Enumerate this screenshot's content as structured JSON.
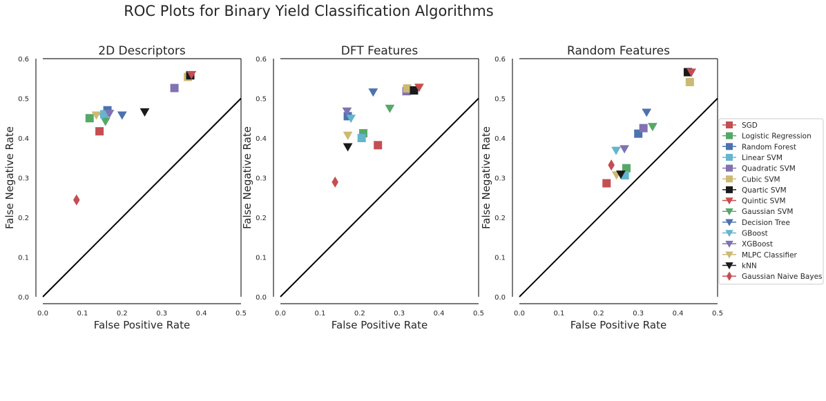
{
  "figure": {
    "title": "ROC Plots for Binary Yield Classification Algorithms"
  },
  "legend": {
    "placement": "right",
    "entries": [
      {
        "name": "SGD",
        "color": "#c44e52",
        "marker": "square"
      },
      {
        "name": "Logistic Regression",
        "color": "#55a868",
        "marker": "square"
      },
      {
        "name": "Random Forest",
        "color": "#4c72b0",
        "marker": "square"
      },
      {
        "name": "Linear SVM",
        "color": "#64b5cd",
        "marker": "square"
      },
      {
        "name": "Quadratic SVM",
        "color": "#8172b2",
        "marker": "square"
      },
      {
        "name": "Cubic SVM",
        "color": "#ccb974",
        "marker": "square"
      },
      {
        "name": "Quartic SVM",
        "color": "#1a1a1a",
        "marker": "square"
      },
      {
        "name": "Quintic SVM",
        "color": "#c44e52",
        "marker": "triangle-down"
      },
      {
        "name": "Gaussian SVM",
        "color": "#55a868",
        "marker": "triangle-down"
      },
      {
        "name": "Decision Tree",
        "color": "#4c72b0",
        "marker": "triangle-down"
      },
      {
        "name": "GBoost",
        "color": "#64b5cd",
        "marker": "triangle-down"
      },
      {
        "name": "XGBoost",
        "color": "#8172b2",
        "marker": "triangle-down"
      },
      {
        "name": "MLPC Classifier",
        "color": "#ccb974",
        "marker": "triangle-down"
      },
      {
        "name": "kNN",
        "color": "#1a1a1a",
        "marker": "triangle-down"
      },
      {
        "name": "Gaussian Naive Bayes",
        "color": "#c44e52",
        "marker": "diamond"
      }
    ]
  },
  "chart_data": [
    {
      "type": "scatter",
      "title": "2D Descriptors",
      "xlabel": "False Positive Rate",
      "ylabel": "False Negative Rate",
      "xlim": [
        0,
        0.5
      ],
      "ylim": [
        0,
        0.6
      ],
      "xticks": [
        "0.0",
        "0.1",
        "0.2",
        "0.3",
        "0.4",
        "0.5"
      ],
      "yticks": [
        "0.0",
        "0.1",
        "0.2",
        "0.3",
        "0.4",
        "0.5",
        "0.6"
      ],
      "grid": false,
      "reference_line": [
        [
          0,
          0
        ],
        [
          0.5,
          0.5
        ]
      ],
      "points": [
        {
          "series": "SGD",
          "x": 0.143,
          "y": 0.417
        },
        {
          "series": "Logistic Regression",
          "x": 0.118,
          "y": 0.45
        },
        {
          "series": "Random Forest",
          "x": 0.163,
          "y": 0.47
        },
        {
          "series": "Linear SVM",
          "x": 0.155,
          "y": 0.46
        },
        {
          "series": "Quadratic SVM",
          "x": 0.332,
          "y": 0.526
        },
        {
          "series": "Cubic SVM",
          "x": 0.366,
          "y": 0.554
        },
        {
          "series": "Quartic SVM",
          "x": 0.372,
          "y": 0.558
        },
        {
          "series": "Quintic SVM",
          "x": 0.375,
          "y": 0.56
        },
        {
          "series": "Gaussian SVM",
          "x": 0.158,
          "y": 0.442
        },
        {
          "series": "Decision Tree",
          "x": 0.2,
          "y": 0.458
        },
        {
          "series": "GBoost",
          "x": 0.15,
          "y": 0.458
        },
        {
          "series": "XGBoost",
          "x": 0.168,
          "y": 0.462
        },
        {
          "series": "MLPC Classifier",
          "x": 0.135,
          "y": 0.458
        },
        {
          "series": "kNN",
          "x": 0.257,
          "y": 0.466
        },
        {
          "series": "Gaussian Naive Bayes",
          "x": 0.085,
          "y": 0.244
        }
      ]
    },
    {
      "type": "scatter",
      "title": "DFT Features",
      "xlabel": "False Positive Rate",
      "ylabel": "False Negative Rate",
      "xlim": [
        0,
        0.5
      ],
      "ylim": [
        0,
        0.6
      ],
      "xticks": [
        "0.0",
        "0.1",
        "0.2",
        "0.3",
        "0.4",
        "0.5"
      ],
      "yticks": [
        "0.0",
        "0.1",
        "0.2",
        "0.3",
        "0.4",
        "0.5",
        "0.6"
      ],
      "grid": false,
      "reference_line": [
        [
          0,
          0
        ],
        [
          0.5,
          0.5
        ]
      ],
      "points": [
        {
          "series": "SGD",
          "x": 0.246,
          "y": 0.382
        },
        {
          "series": "Logistic Regression",
          "x": 0.209,
          "y": 0.412
        },
        {
          "series": "Random Forest",
          "x": 0.17,
          "y": 0.455
        },
        {
          "series": "Linear SVM",
          "x": 0.205,
          "y": 0.4
        },
        {
          "series": "Quadratic SVM",
          "x": 0.318,
          "y": 0.518
        },
        {
          "series": "Cubic SVM",
          "x": 0.32,
          "y": 0.525
        },
        {
          "series": "Quartic SVM",
          "x": 0.337,
          "y": 0.52
        },
        {
          "series": "Quintic SVM",
          "x": 0.35,
          "y": 0.528
        },
        {
          "series": "Gaussian SVM",
          "x": 0.276,
          "y": 0.475
        },
        {
          "series": "Decision Tree",
          "x": 0.234,
          "y": 0.516
        },
        {
          "series": "GBoost",
          "x": 0.178,
          "y": 0.45
        },
        {
          "series": "XGBoost",
          "x": 0.168,
          "y": 0.468
        },
        {
          "series": "MLPC Classifier",
          "x": 0.17,
          "y": 0.407
        },
        {
          "series": "kNN",
          "x": 0.17,
          "y": 0.378
        },
        {
          "series": "Gaussian Naive Bayes",
          "x": 0.138,
          "y": 0.289
        }
      ]
    },
    {
      "type": "scatter",
      "title": "Random Features",
      "xlabel": "False Positive Rate",
      "ylabel": "False Negative Rate",
      "xlim": [
        0,
        0.5
      ],
      "ylim": [
        0,
        0.6
      ],
      "xticks": [
        "0.0",
        "0.1",
        "0.2",
        "0.3",
        "0.4",
        "0.5"
      ],
      "yticks": [
        "0.0",
        "0.1",
        "0.2",
        "0.3",
        "0.4",
        "0.5",
        "0.6"
      ],
      "grid": false,
      "reference_line": [
        [
          0,
          0
        ],
        [
          0.5,
          0.5
        ]
      ],
      "points": [
        {
          "series": "SGD",
          "x": 0.22,
          "y": 0.286
        },
        {
          "series": "Logistic Regression",
          "x": 0.27,
          "y": 0.324
        },
        {
          "series": "Random Forest",
          "x": 0.3,
          "y": 0.411
        },
        {
          "series": "Linear SVM",
          "x": 0.266,
          "y": 0.306
        },
        {
          "series": "Quadratic SVM",
          "x": 0.313,
          "y": 0.425
        },
        {
          "series": "Cubic SVM",
          "x": 0.43,
          "y": 0.541
        },
        {
          "series": "Quartic SVM",
          "x": 0.425,
          "y": 0.566
        },
        {
          "series": "Quintic SVM",
          "x": 0.434,
          "y": 0.566
        },
        {
          "series": "Gaussian SVM",
          "x": 0.336,
          "y": 0.429
        },
        {
          "series": "Decision Tree",
          "x": 0.321,
          "y": 0.465
        },
        {
          "series": "GBoost",
          "x": 0.244,
          "y": 0.369
        },
        {
          "series": "XGBoost",
          "x": 0.265,
          "y": 0.373
        },
        {
          "series": "MLPC Classifier",
          "x": 0.245,
          "y": 0.307
        },
        {
          "series": "kNN",
          "x": 0.256,
          "y": 0.309
        },
        {
          "series": "Gaussian Naive Bayes",
          "x": 0.232,
          "y": 0.332
        }
      ]
    }
  ]
}
